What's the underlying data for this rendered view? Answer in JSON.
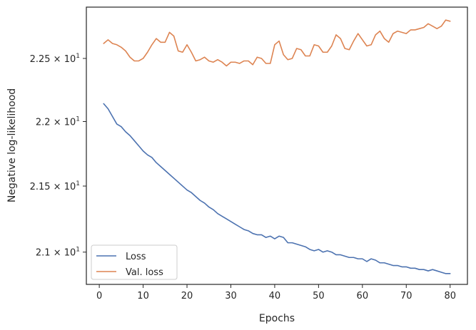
{
  "chart_data": {
    "type": "line",
    "title": "",
    "xlabel": "Epochs",
    "ylabel": "Negative log-likelihood",
    "yscale": "log",
    "xlim": [
      -2.95,
      83.95
    ],
    "ylim": [
      20.76,
      22.915
    ],
    "grid": false,
    "legend_position": "lower-left",
    "x_ticks": [
      0,
      10,
      20,
      30,
      40,
      50,
      60,
      70,
      80
    ],
    "x_tick_labels": [
      "0",
      "10",
      "20",
      "30",
      "40",
      "50",
      "60",
      "70",
      "80"
    ],
    "y_ticks": [
      21.0,
      21.5,
      22.0,
      22.5
    ],
    "y_tick_labels": [
      {
        "mantissa": "2.1",
        "exponent": "1"
      },
      {
        "mantissa": "2.15",
        "exponent": "1"
      },
      {
        "mantissa": "2.2",
        "exponent": "1"
      },
      {
        "mantissa": "2.25",
        "exponent": "1"
      }
    ],
    "y_tick_times": "×",
    "y_tick_base": "10",
    "x": [
      1,
      2,
      3,
      4,
      5,
      6,
      7,
      8,
      9,
      10,
      11,
      12,
      13,
      14,
      15,
      16,
      17,
      18,
      19,
      20,
      21,
      22,
      23,
      24,
      25,
      26,
      27,
      28,
      29,
      30,
      31,
      32,
      33,
      34,
      35,
      36,
      37,
      38,
      39,
      40,
      41,
      42,
      43,
      44,
      45,
      46,
      47,
      48,
      49,
      50,
      51,
      52,
      53,
      54,
      55,
      56,
      57,
      58,
      59,
      60,
      61,
      62,
      63,
      64,
      65,
      66,
      67,
      68,
      69,
      70,
      71,
      72,
      73,
      74,
      75,
      76,
      77,
      78,
      79,
      80
    ],
    "series": [
      {
        "name": "Loss",
        "color": "#4c72b0",
        "values": [
          22.14,
          22.1,
          22.04,
          21.98,
          21.96,
          21.92,
          21.89,
          21.85,
          21.81,
          21.77,
          21.74,
          21.72,
          21.68,
          21.65,
          21.62,
          21.59,
          21.56,
          21.53,
          21.5,
          21.47,
          21.45,
          21.42,
          21.39,
          21.37,
          21.34,
          21.32,
          21.29,
          21.27,
          21.25,
          21.23,
          21.21,
          21.19,
          21.17,
          21.16,
          21.14,
          21.13,
          21.13,
          21.11,
          21.12,
          21.1,
          21.12,
          21.11,
          21.07,
          21.07,
          21.06,
          21.05,
          21.04,
          21.02,
          21.01,
          21.02,
          21.0,
          21.01,
          21.0,
          20.98,
          20.98,
          20.97,
          20.96,
          20.96,
          20.95,
          20.95,
          20.93,
          20.95,
          20.94,
          20.92,
          20.92,
          20.91,
          20.9,
          20.9,
          20.89,
          20.89,
          20.88,
          20.88,
          20.87,
          20.87,
          20.86,
          20.87,
          20.86,
          20.85,
          20.84,
          20.84
        ]
      },
      {
        "name": "Val. loss",
        "color": "#dd8452",
        "values": [
          22.62,
          22.65,
          22.62,
          22.61,
          22.59,
          22.56,
          22.51,
          22.48,
          22.48,
          22.5,
          22.55,
          22.61,
          22.66,
          22.63,
          22.63,
          22.71,
          22.68,
          22.56,
          22.55,
          22.61,
          22.55,
          22.48,
          22.49,
          22.51,
          22.48,
          22.47,
          22.49,
          22.47,
          22.44,
          22.47,
          22.47,
          22.46,
          22.48,
          22.48,
          22.45,
          22.51,
          22.5,
          22.46,
          22.46,
          22.61,
          22.64,
          22.53,
          22.49,
          22.5,
          22.58,
          22.57,
          22.52,
          22.52,
          22.61,
          22.6,
          22.55,
          22.55,
          22.6,
          22.69,
          22.66,
          22.58,
          22.57,
          22.64,
          22.7,
          22.65,
          22.6,
          22.61,
          22.69,
          22.72,
          22.66,
          22.63,
          22.7,
          22.72,
          22.71,
          22.7,
          22.73,
          22.73,
          22.74,
          22.75,
          22.78,
          22.76,
          22.74,
          22.76,
          22.81,
          22.8
        ]
      }
    ]
  }
}
